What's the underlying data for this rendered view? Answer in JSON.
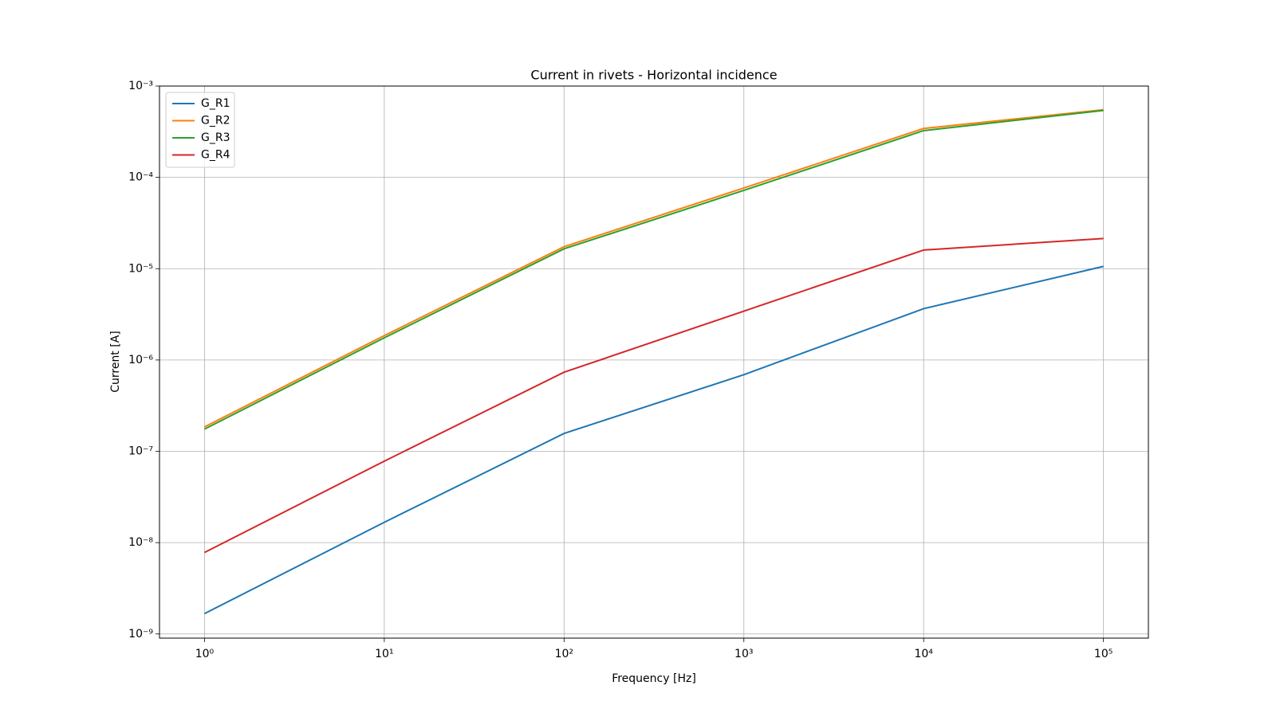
{
  "chart_data": {
    "type": "line",
    "title": "Current in rivets - Horizontal incidence",
    "x_label": "Frequency [Hz]",
    "y_label": "Current [A]",
    "x": [
      1,
      10,
      100,
      1000,
      10000,
      100000
    ],
    "series": [
      {
        "name": "G_R1",
        "color": "#1f77b4",
        "values": [
          1.67e-09,
          1.67e-08,
          1.57e-07,
          6.9e-07,
          3.65e-06,
          1.06e-05
        ]
      },
      {
        "name": "G_R2",
        "color": "#ff7f0e",
        "values": [
          1.85e-07,
          1.85e-06,
          1.74e-05,
          7.65e-05,
          0.000343,
          0.00055
        ]
      },
      {
        "name": "G_R3",
        "color": "#2ca02c",
        "values": [
          1.75e-07,
          1.75e-06,
          1.65e-05,
          7.2e-05,
          0.000325,
          0.00054
        ]
      },
      {
        "name": "G_R4",
        "color": "#d62728",
        "values": [
          7.8e-09,
          7.8e-08,
          7.35e-07,
          3.43e-06,
          1.6e-05,
          2.14e-05
        ]
      }
    ],
    "xscale": "log",
    "yscale": "log",
    "xlim": [
      0.562,
      177828
    ],
    "ylim": [
      9e-10,
      0.001
    ],
    "xticks": [
      {
        "value": 1,
        "label": "10⁰"
      },
      {
        "value": 10,
        "label": "10¹"
      },
      {
        "value": 100,
        "label": "10²"
      },
      {
        "value": 1000,
        "label": "10³"
      },
      {
        "value": 10000,
        "label": "10⁴"
      },
      {
        "value": 100000,
        "label": "10⁵"
      }
    ],
    "yticks": [
      {
        "value": 1e-09,
        "label": "10⁻⁹"
      },
      {
        "value": 1e-08,
        "label": "10⁻⁸"
      },
      {
        "value": 1e-07,
        "label": "10⁻⁷"
      },
      {
        "value": 1e-06,
        "label": "10⁻⁶"
      },
      {
        "value": 1e-05,
        "label": "10⁻⁵"
      },
      {
        "value": 0.0001,
        "label": "10⁻⁴"
      },
      {
        "value": 0.001,
        "label": "10⁻³"
      }
    ],
    "grid": true,
    "legend": "upper left"
  }
}
